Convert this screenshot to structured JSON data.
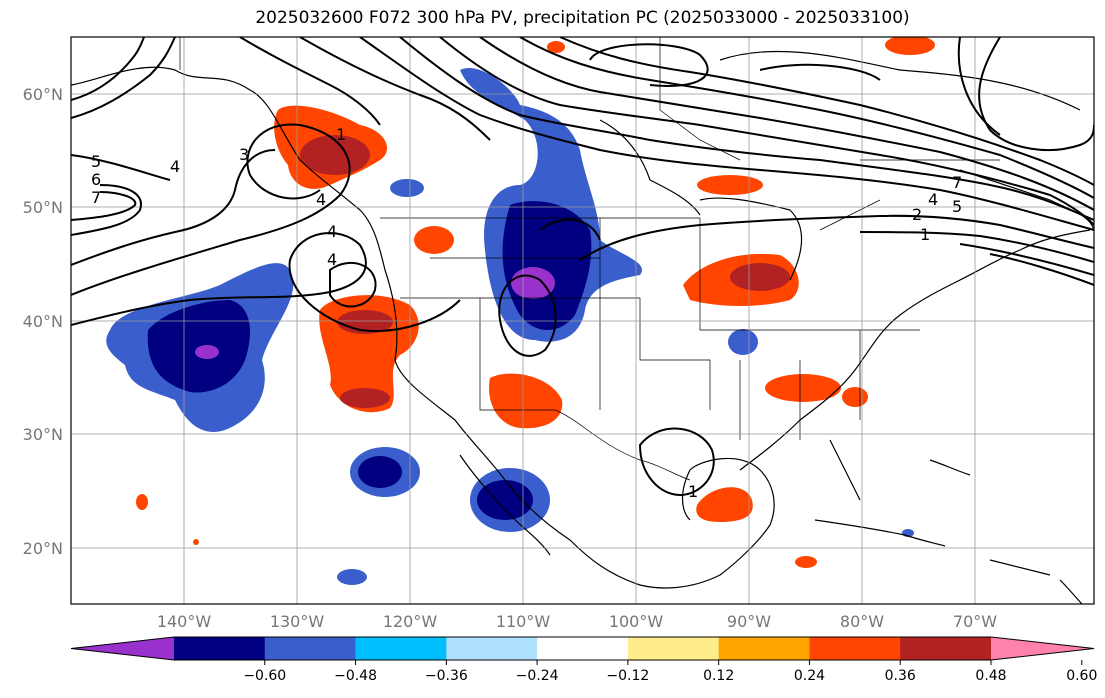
{
  "title": "2025032600 F072 300 hPa PV, precipitation PC (2025033000 - 2025033100)",
  "lat_labels": [
    "60°N",
    "50°N",
    "40°N",
    "30°N",
    "20°N"
  ],
  "lon_labels": [
    "140°W",
    "130°W",
    "120°W",
    "110°W",
    "100°W",
    "90°W",
    "80°W",
    "70°W"
  ],
  "colorbar": {
    "ticks": [
      "−0.60",
      "−0.48",
      "−0.36",
      "−0.24",
      "−0.12",
      "0.12",
      "0.24",
      "0.36",
      "0.48",
      "0.60"
    ],
    "colors": [
      "#9932cc",
      "#000080",
      "#3a5fcd",
      "#00bfff",
      "#b0e2ff",
      "#ffffff",
      "#ffec8b",
      "#ffa500",
      "#ff4500",
      "#b22222",
      "#ff82ab"
    ]
  },
  "contour_labels": [
    "1",
    "3",
    "4",
    "5",
    "6",
    "7",
    "4",
    "4",
    "4",
    "1",
    "4",
    "5",
    "7",
    "2",
    "1"
  ]
}
